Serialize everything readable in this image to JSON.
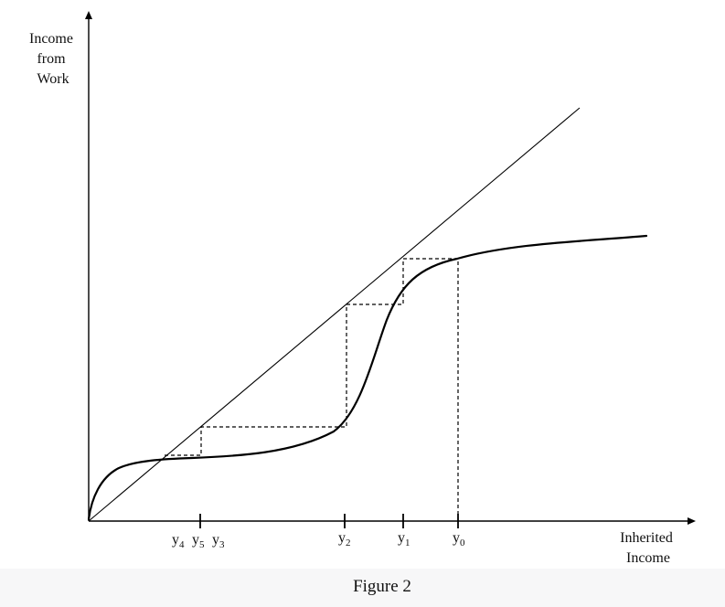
{
  "y_axis": {
    "label_lines": [
      "Income",
      "from",
      "Work"
    ]
  },
  "x_axis": {
    "label_lines": [
      "Inherited",
      "Income"
    ]
  },
  "points": [
    {
      "name": "y4",
      "base": "y",
      "sub": "4"
    },
    {
      "name": "y5",
      "base": "y",
      "sub": "5"
    },
    {
      "name": "y3",
      "base": "y",
      "sub": "3"
    },
    {
      "name": "y2",
      "base": "y",
      "sub": "2"
    },
    {
      "name": "y1",
      "base": "y",
      "sub": "1"
    },
    {
      "name": "y0",
      "base": "y",
      "sub": "0"
    }
  ],
  "caption": "Figure 2",
  "colors": {
    "ink": "#000000",
    "background": "#ffffff",
    "footer": "#f7f7f8"
  }
}
